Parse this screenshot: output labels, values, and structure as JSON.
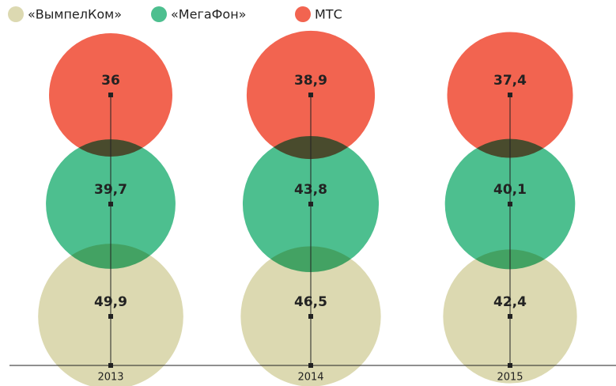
{
  "chart_data": {
    "type": "bubble",
    "categories": [
      "2013",
      "2014",
      "2015"
    ],
    "series": [
      {
        "name": "«ВымпелКом»",
        "color": "#dcd9b1",
        "values": [
          49.9,
          46.5,
          42.4
        ],
        "value_labels": [
          "49,9",
          "46,5",
          "42,4"
        ]
      },
      {
        "name": "«МегаФон»",
        "color": "#4dbf8f",
        "values": [
          39.7,
          43.8,
          40.1
        ],
        "value_labels": [
          "39,7",
          "43,8",
          "40,1"
        ]
      },
      {
        "name": "МТС",
        "color": "#f26450",
        "values": [
          36,
          38.9,
          37.4
        ],
        "value_labels": [
          "36",
          "38,9",
          "37,4"
        ]
      }
    ]
  }
}
